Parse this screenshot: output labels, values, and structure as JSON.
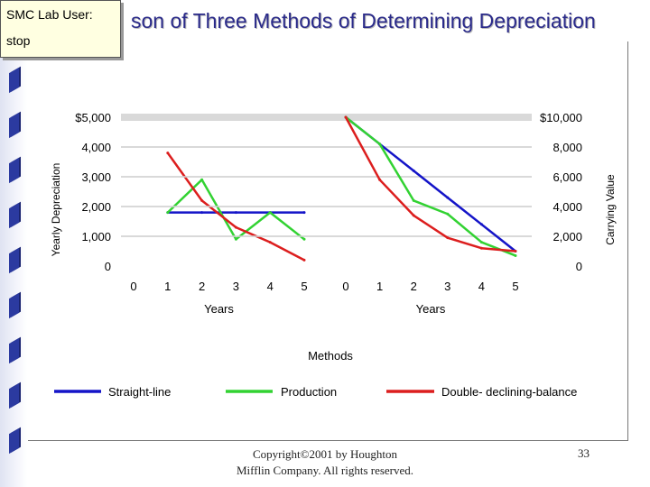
{
  "slide": {
    "title": "Comparison of Three Methods of Determining Depreciation",
    "title_visible": "son of Three Methods of Determining Depreciation",
    "footer_line1": "Copyright©2001 by Houghton",
    "footer_line2": "Mifflin Company. All rights reserved.",
    "page_number": "33"
  },
  "user_box": {
    "label": "SMC Lab User:",
    "value": "stop"
  },
  "colors": {
    "straight_line": "#1414c8",
    "production": "#32d232",
    "ddb": "#dc1e1e"
  },
  "chart_data": [
    {
      "type": "line",
      "ylabel": "Yearly Depreciation",
      "xlabel": "Years",
      "x_ticks": [
        "0",
        "1",
        "2",
        "3",
        "4",
        "5"
      ],
      "y_ticks": [
        "0",
        "1,000",
        "2,000",
        "3,000",
        "4,000",
        "$5,000"
      ],
      "ylim": [
        0,
        5000
      ],
      "xlim": [
        0,
        5
      ],
      "series": [
        {
          "name": "Straight-line",
          "x": [
            1,
            2,
            3,
            4,
            5
          ],
          "values": [
            1800,
            1800,
            1800,
            1800,
            1800
          ]
        },
        {
          "name": "Production",
          "x": [
            1,
            2,
            3,
            4,
            5
          ],
          "values": [
            1800,
            2900,
            900,
            1800,
            900
          ]
        },
        {
          "name": "Double- declining-balance",
          "x": [
            1,
            2,
            3,
            4,
            5
          ],
          "values": [
            3800,
            2200,
            1300,
            800,
            200
          ]
        }
      ]
    },
    {
      "type": "line",
      "ylabel": "Carrying Value",
      "xlabel": "Years",
      "x_ticks": [
        "0",
        "1",
        "2",
        "3",
        "4",
        "5"
      ],
      "y_ticks": [
        "0",
        "2,000",
        "4,000",
        "6,000",
        "8,000",
        "$10,000"
      ],
      "ylim": [
        0,
        10000
      ],
      "xlim": [
        0,
        5
      ],
      "series": [
        {
          "name": "Straight-line",
          "x": [
            0,
            1,
            2,
            3,
            4,
            5
          ],
          "values": [
            10000,
            8200,
            6400,
            4600,
            2800,
            1000
          ]
        },
        {
          "name": "Production",
          "x": [
            0,
            1,
            2,
            3,
            4,
            5
          ],
          "values": [
            10000,
            8200,
            4400,
            3500,
            1600,
            700
          ]
        },
        {
          "name": "Double- declining-balance",
          "x": [
            0,
            1,
            2,
            3,
            4,
            5
          ],
          "values": [
            10000,
            5800,
            3400,
            1900,
            1200,
            1000
          ]
        }
      ]
    }
  ],
  "legend": {
    "title": "Methods",
    "items": [
      "Straight-line",
      "Production",
      "Double- declining-balance"
    ]
  }
}
